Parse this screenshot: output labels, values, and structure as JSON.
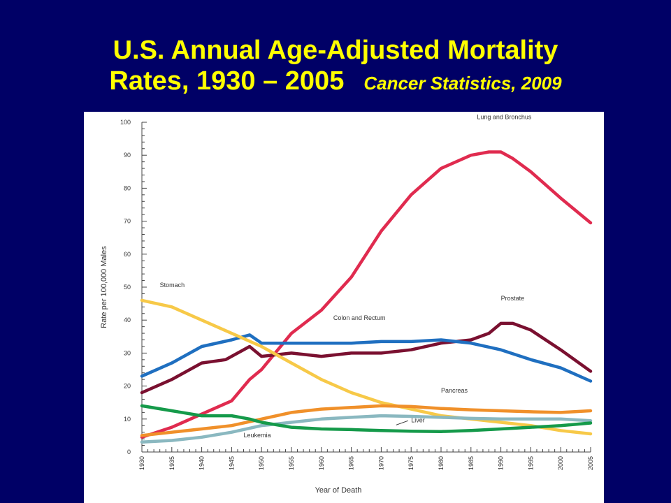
{
  "slide": {
    "title_line1": "U.S. Annual Age-Adjusted Mortality",
    "title_line2": "Rates, 1930 – 2005",
    "subtitle": "Cancer Statistics, 2009"
  },
  "colors": {
    "background": "#000066",
    "title": "#ffff00",
    "Lung and Bronchus": "#e02b4f",
    "Prostate": "#7a1030",
    "Colon and Rectum": "#1f6fc0",
    "Stomach": "#f7c948",
    "Pancreas": "#f0902a",
    "Liver": "#8ab8c0",
    "Leukemia": "#159a4a"
  },
  "chart_data": {
    "type": "line",
    "xlabel": "Year of Death",
    "ylabel": "Rate per 100,000 Males",
    "xlim": [
      1930,
      2005
    ],
    "ylim": [
      0,
      100
    ],
    "xticks": [
      1930,
      1935,
      1940,
      1945,
      1950,
      1955,
      1960,
      1965,
      1970,
      1975,
      1980,
      1985,
      1990,
      1995,
      2000,
      2005
    ],
    "yticks": [
      0,
      10,
      20,
      30,
      40,
      50,
      60,
      70,
      80,
      90,
      100
    ],
    "grid": false,
    "series": [
      {
        "name": "Lung and Bronchus",
        "x": [
          1930,
          1935,
          1940,
          1945,
          1948,
          1950,
          1955,
          1960,
          1965,
          1970,
          1975,
          1980,
          1985,
          1988,
          1990,
          1992,
          1995,
          2000,
          2005
        ],
        "y": [
          4.5,
          7.5,
          11.5,
          15.5,
          22,
          25,
          36,
          43,
          53,
          67,
          78,
          86,
          90,
          91,
          91,
          89,
          85,
          77,
          69.5
        ]
      },
      {
        "name": "Prostate",
        "x": [
          1930,
          1935,
          1940,
          1944,
          1948,
          1950,
          1955,
          1960,
          1965,
          1970,
          1975,
          1980,
          1985,
          1988,
          1990,
          1992,
          1995,
          2000,
          2005
        ],
        "y": [
          18,
          22,
          27,
          28,
          32,
          29,
          30,
          29,
          30,
          30,
          31,
          33,
          34,
          36,
          39,
          39,
          37,
          31,
          24.5
        ]
      },
      {
        "name": "Colon and Rectum",
        "x": [
          1930,
          1935,
          1940,
          1945,
          1948,
          1950,
          1955,
          1960,
          1965,
          1970,
          1975,
          1980,
          1985,
          1990,
          1995,
          2000,
          2005
        ],
        "y": [
          23,
          27,
          32,
          34,
          35.5,
          33,
          33,
          33,
          33,
          33.5,
          33.5,
          34,
          33,
          31,
          28,
          25.5,
          21.5
        ]
      },
      {
        "name": "Stomach",
        "x": [
          1930,
          1935,
          1940,
          1945,
          1950,
          1955,
          1960,
          1965,
          1970,
          1975,
          1980,
          1985,
          1990,
          1995,
          2000,
          2005
        ],
        "y": [
          46,
          44,
          40,
          36,
          32,
          27,
          22,
          18,
          15,
          13,
          11,
          10,
          9,
          8,
          6.5,
          5.5
        ]
      },
      {
        "name": "Pancreas",
        "x": [
          1930,
          1935,
          1940,
          1945,
          1950,
          1955,
          1960,
          1965,
          1970,
          1975,
          1980,
          1985,
          1990,
          1995,
          2000,
          2005
        ],
        "y": [
          5,
          6,
          7,
          8,
          10,
          12,
          13,
          13.5,
          14,
          13.8,
          13.2,
          12.8,
          12.5,
          12.2,
          12.0,
          12.5
        ]
      },
      {
        "name": "Liver",
        "x": [
          1930,
          1935,
          1940,
          1945,
          1950,
          1955,
          1960,
          1965,
          1970,
          1975,
          1980,
          1985,
          1990,
          1995,
          2000,
          2005
        ],
        "y": [
          3,
          3.5,
          4.5,
          6,
          8,
          9,
          10,
          10.5,
          11,
          10.8,
          10.5,
          10.2,
          10,
          10,
          10,
          9.5
        ]
      },
      {
        "name": "Leukemia",
        "x": [
          1930,
          1935,
          1940,
          1945,
          1948,
          1950,
          1955,
          1960,
          1965,
          1970,
          1975,
          1980,
          1985,
          1990,
          1995,
          2000,
          2005
        ],
        "y": [
          14,
          12.5,
          11,
          11,
          10,
          9,
          7.5,
          7,
          6.8,
          6.5,
          6.3,
          6.2,
          6.5,
          7,
          7.5,
          8,
          8.8
        ]
      }
    ],
    "annotations": [
      {
        "text": "Lung and Bronchus",
        "x": 1986,
        "y": 101
      },
      {
        "text": "Stomach",
        "x": 1933,
        "y": 50
      },
      {
        "text": "Prostate",
        "x": 1990,
        "y": 46
      },
      {
        "text": "Colon and Rectum",
        "x": 1962,
        "y": 40
      },
      {
        "text": "Pancreas",
        "x": 1980,
        "y": 18
      },
      {
        "text": "Liver",
        "x": 1975,
        "y": 9
      },
      {
        "text": "Leukemia",
        "x": 1947,
        "y": 4.5
      }
    ]
  }
}
